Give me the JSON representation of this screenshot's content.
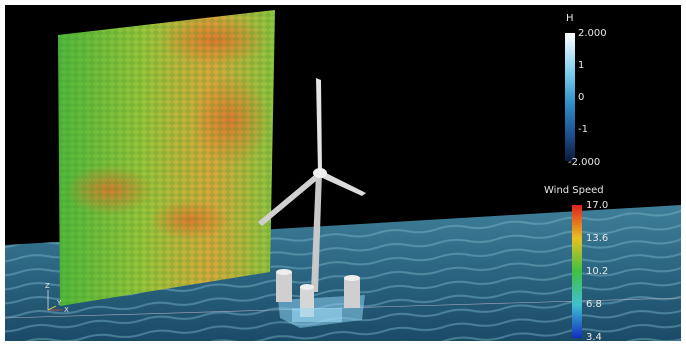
{
  "colorbars": [
    {
      "title": "H",
      "ticks": [
        "2.000",
        "1",
        "0",
        "-1",
        "-2.000"
      ]
    },
    {
      "title": "Wind Speed",
      "ticks": [
        "17.0",
        "13.6",
        "10.2",
        "6.8",
        "3.4"
      ]
    }
  ],
  "axes_triad": [
    "Z",
    "Y",
    "X"
  ]
}
